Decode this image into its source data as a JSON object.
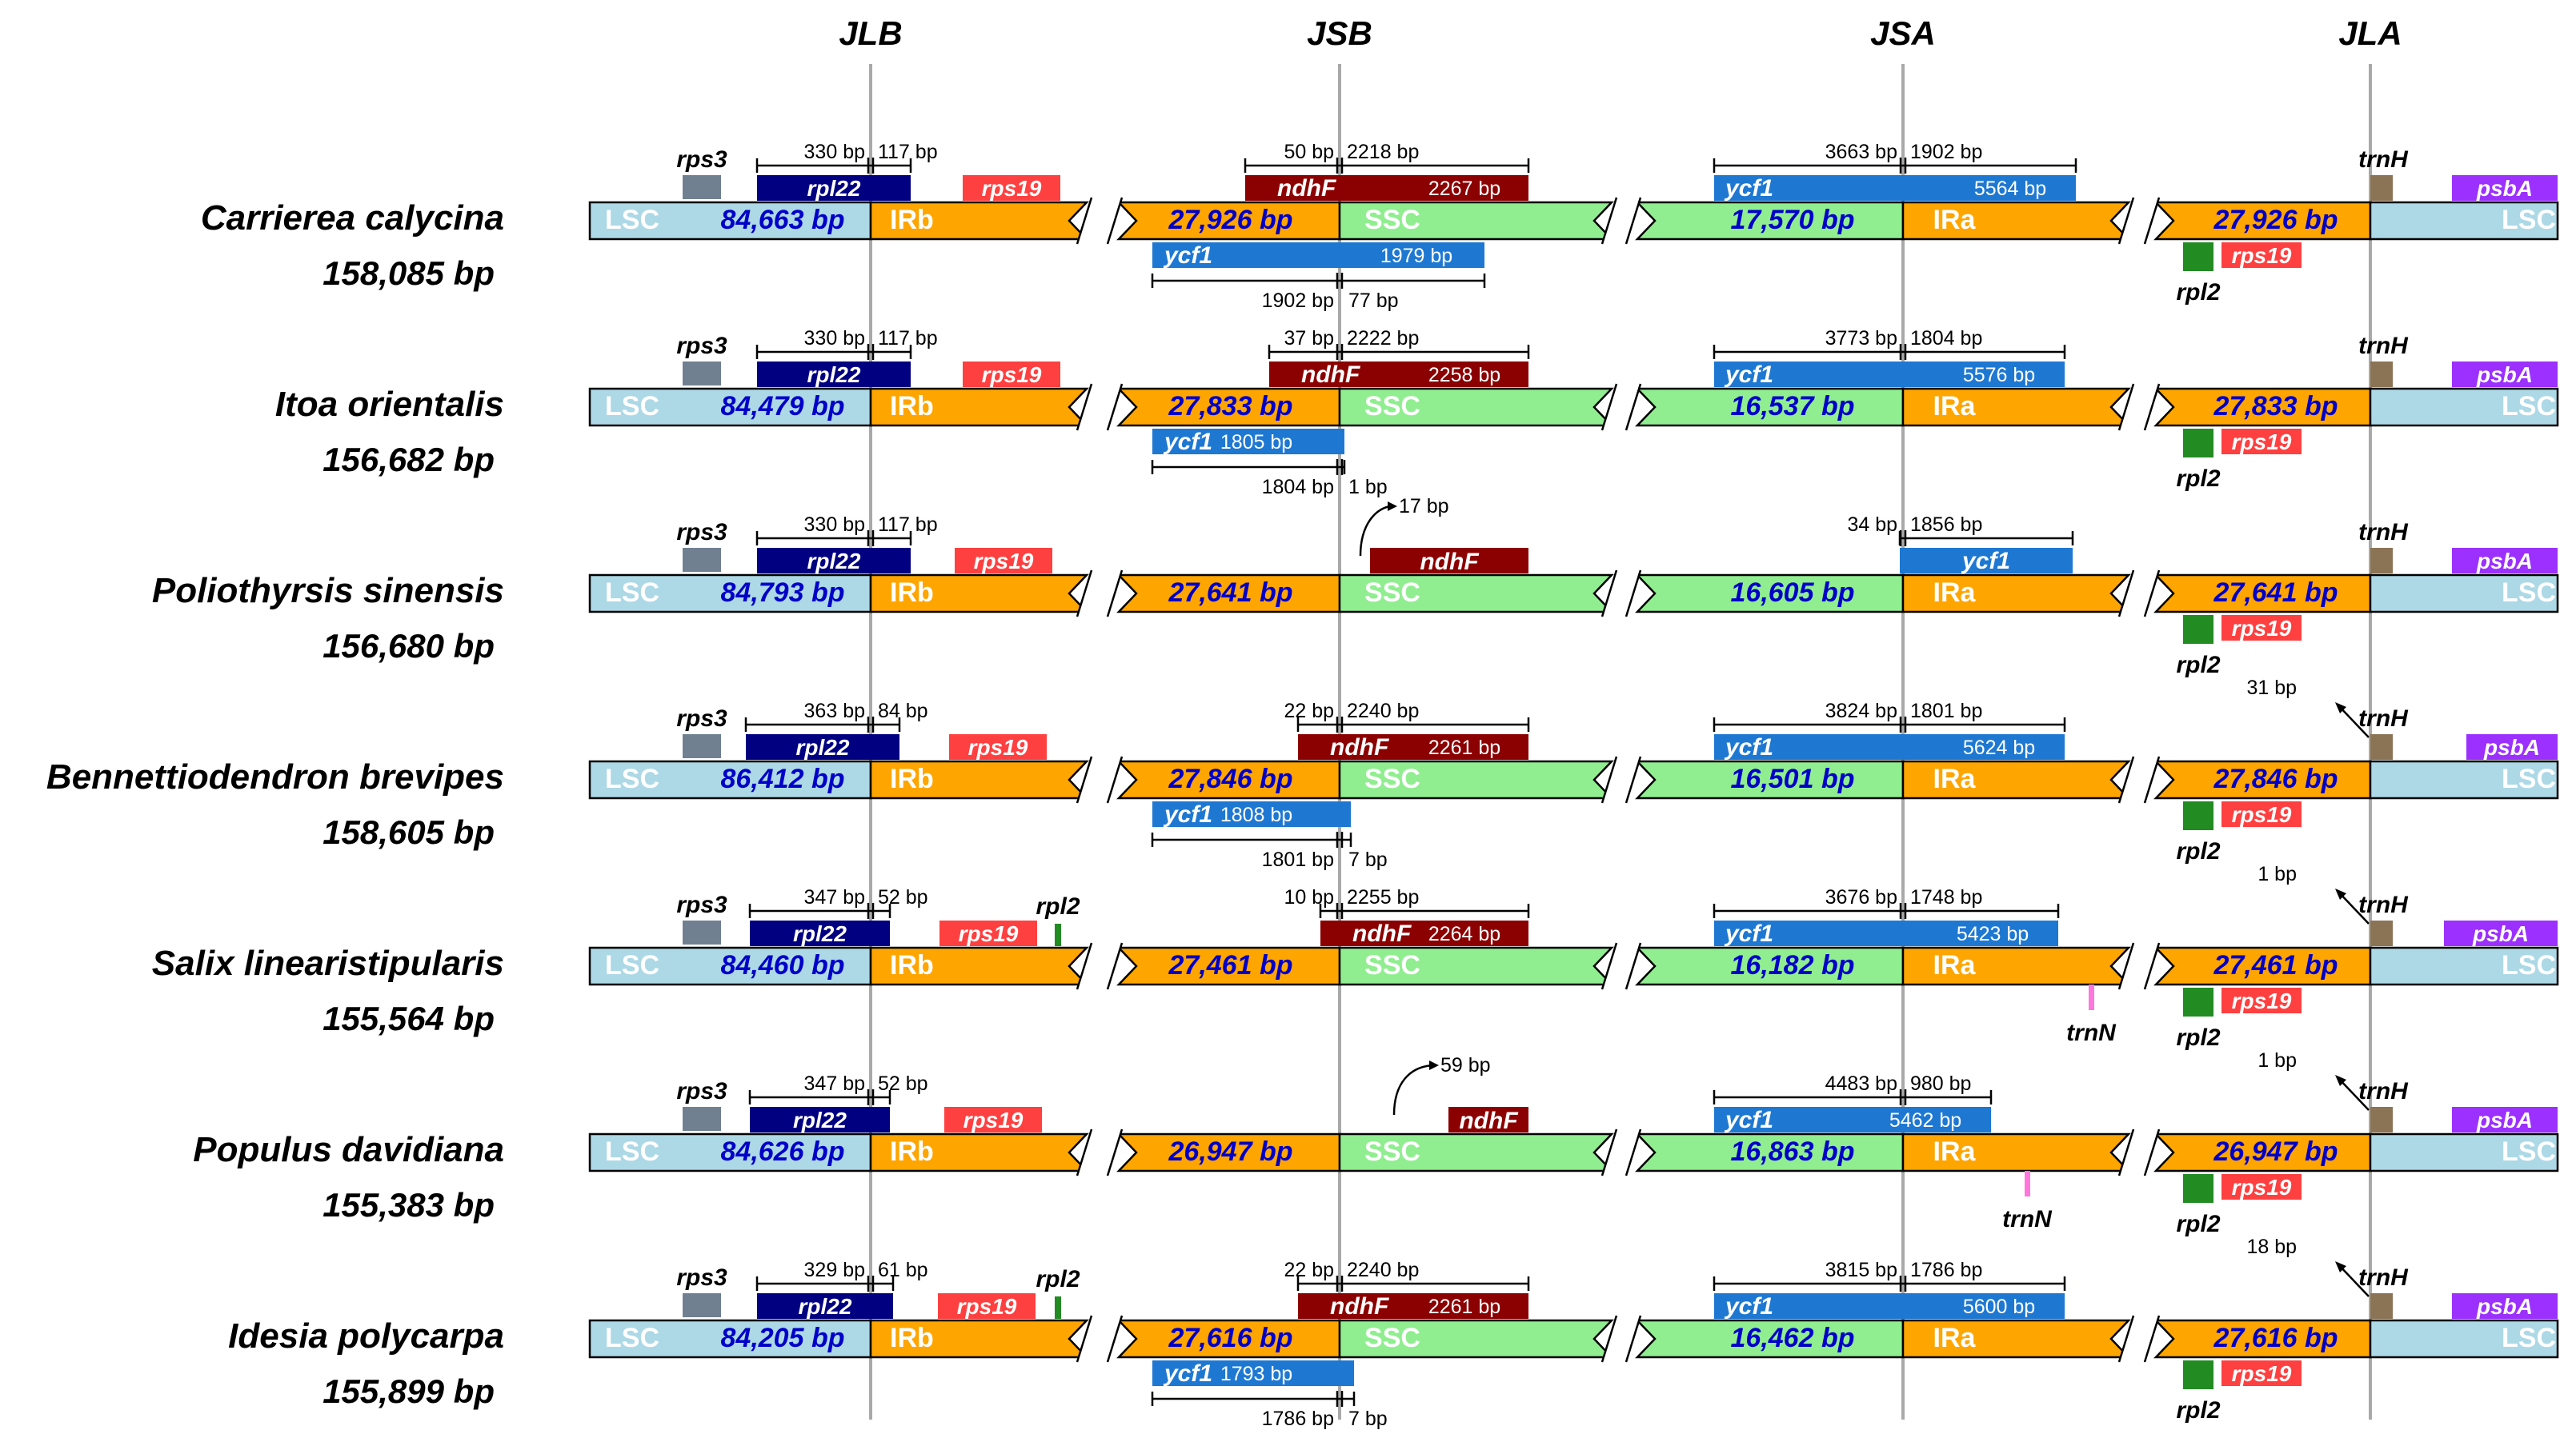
{
  "junctions": [
    "JLB",
    "JSB",
    "JSA",
    "JLA"
  ],
  "region_names": {
    "lsc": "LSC",
    "irb": "IRb",
    "ssc": "SSC",
    "ira": "IRa"
  },
  "colors": {
    "lsc": "#add8e6",
    "ir": "#ffa500",
    "ssc": "#90ee90",
    "border": "#000000",
    "rps3": "#708090",
    "rpl22": "#000080",
    "rps19": "#ff4040",
    "ndhF": "#8b0000",
    "ycf1": "#1e78d2",
    "trnH": "#8b7355",
    "psbA": "#9b30ff",
    "rpl2": "#228b22",
    "trnN": "#ff77dd",
    "region_text": "#0000c8",
    "junction_line": "#a9a9a9"
  },
  "rows": [
    {
      "species": "Carrierea calycina",
      "total": "158,085 bp",
      "lsc": "84,663 bp",
      "ir": "27,926 bp",
      "ssc": "17,570 bp",
      "ir2": "27,926 bp",
      "rps3": "rps3",
      "rpl22": "rpl22",
      "rps19_top": "rps19",
      "rps19_bottom": "rps19",
      "rpl2_top": null,
      "rpl2_bottom": "rpl2",
      "trnH": "trnH",
      "psbA": "psbA",
      "trnN": null,
      "jlb_left": "330 bp",
      "jlb_right": "117 bp",
      "ndhF": "ndhF",
      "ndhF_len": "2267 bp",
      "jsb_left": "50 bp",
      "jsb_right": "2218 bp",
      "ndhF_arrow": false,
      "ycf1_small": "ycf1",
      "ycf1_small_len": "1979 bp",
      "jsb_b_left": "1902 bp",
      "jsb_b_right": "77 bp",
      "ycf1": "ycf1",
      "ycf1_len": "5564 bp",
      "jsa_left": "3663 bp",
      "jsa_right": "1902 bp",
      "jla_bp": null
    },
    {
      "species": "Itoa orientalis",
      "total": "156,682 bp",
      "lsc": "84,479 bp",
      "ir": "27,833 bp",
      "ssc": "16,537 bp",
      "ir2": "27,833 bp",
      "rps3": "rps3",
      "rpl22": "rpl22",
      "rps19_top": "rps19",
      "rps19_bottom": "rps19",
      "rpl2_top": null,
      "rpl2_bottom": "rpl2",
      "trnH": "trnH",
      "psbA": "psbA",
      "trnN": null,
      "jlb_left": "330 bp",
      "jlb_right": "117 bp",
      "ndhF": "ndhF",
      "ndhF_len": "2258 bp",
      "jsb_left": "37 bp",
      "jsb_right": "2222 bp",
      "ndhF_arrow": false,
      "ycf1_small": "ycf1",
      "ycf1_small_len": "1805 bp",
      "jsb_b_left": "1804 bp",
      "jsb_b_right": "1 bp",
      "ycf1": "ycf1",
      "ycf1_len": "5576 bp",
      "jsa_left": "3773 bp",
      "jsa_right": "1804 bp",
      "jla_bp": null
    },
    {
      "species": "Poliothyrsis sinensis",
      "total": "156,680 bp",
      "lsc": "84,793 bp",
      "ir": "27,641 bp",
      "ssc": "16,605 bp",
      "ir2": "27,641 bp",
      "rps3": "rps3",
      "rpl22": "rpl22",
      "rps19_top": "rps19",
      "rps19_bottom": "rps19",
      "rpl2_top": null,
      "rpl2_bottom": "rpl2",
      "trnH": "trnH",
      "psbA": "psbA",
      "trnN": null,
      "jlb_left": "330 bp",
      "jlb_right": "117 bp",
      "ndhF": "ndhF",
      "ndhF_len": null,
      "jsb_left": null,
      "jsb_right": null,
      "ndhF_arrow": true,
      "ndhF_gap": "17 bp",
      "ycf1_small": null,
      "ycf1_small_len": null,
      "jsb_b_left": null,
      "jsb_b_right": null,
      "ycf1": "ycf1",
      "ycf1_len": null,
      "jsa_left": "34 bp",
      "jsa_right": "1856 bp",
      "jla_bp": null
    },
    {
      "species": "Bennettiodendron brevipes",
      "total": "158,605 bp",
      "lsc": "86,412 bp",
      "ir": "27,846 bp",
      "ssc": "16,501 bp",
      "ir2": "27,846 bp",
      "rps3": "rps3",
      "rpl22": "rpl22",
      "rps19_top": "rps19",
      "rps19_bottom": "rps19",
      "rpl2_top": null,
      "rpl2_bottom": "rpl2",
      "trnH": "trnH",
      "psbA": "psbA",
      "trnN": null,
      "jlb_left": "363 bp",
      "jlb_right": "84 bp",
      "ndhF": "ndhF",
      "ndhF_len": "2261 bp",
      "jsb_left": "22 bp",
      "jsb_right": "2240 bp",
      "ndhF_arrow": false,
      "ycf1_small": "ycf1",
      "ycf1_small_len": "1808 bp",
      "jsb_b_left": "1801 bp",
      "jsb_b_right": "7 bp",
      "ycf1": "ycf1",
      "ycf1_len": "5624 bp",
      "jsa_left": "3824 bp",
      "jsa_right": "1801 bp",
      "jla_bp": "31 bp"
    },
    {
      "species": "Salix linearistipularis",
      "total": "155,564 bp",
      "lsc": "84,460 bp",
      "ir": "27,461 bp",
      "ssc": "16,182 bp",
      "ir2": "27,461 bp",
      "rps3": "rps3",
      "rpl22": "rpl22",
      "rps19_top": "rps19",
      "rps19_bottom": "rps19",
      "rpl2_top": "rpl2",
      "rpl2_bottom": "rpl2",
      "trnH": "trnH",
      "psbA": "psbA",
      "trnN": "trnN",
      "jlb_left": "347 bp",
      "jlb_right": "52 bp",
      "ndhF": "ndhF",
      "ndhF_len": "2264 bp",
      "jsb_left": "10 bp",
      "jsb_right": "2255 bp",
      "ndhF_arrow": false,
      "ycf1_small": null,
      "ycf1_small_len": null,
      "jsb_b_left": null,
      "jsb_b_right": null,
      "ycf1": "ycf1",
      "ycf1_len": "5423 bp",
      "jsa_left": "3676 bp",
      "jsa_right": "1748 bp",
      "jla_bp": "1 bp"
    },
    {
      "species": "Populus davidiana",
      "total": "155,383 bp",
      "lsc": "84,626 bp",
      "ir": "26,947 bp",
      "ssc": "16,863 bp",
      "ir2": "26,947 bp",
      "rps3": "rps3",
      "rpl22": "rpl22",
      "rps19_top": "rps19",
      "rps19_bottom": "rps19",
      "rpl2_top": null,
      "rpl2_bottom": "rpl2",
      "trnH": "trnH",
      "psbA": "psbA",
      "trnN": "trnN",
      "jlb_left": "347 bp",
      "jlb_right": "52 bp",
      "ndhF": "ndhF",
      "ndhF_len": null,
      "jsb_left": null,
      "jsb_right": null,
      "ndhF_arrow": true,
      "ndhF_gap": "59 bp",
      "ycf1_small": null,
      "ycf1_small_len": null,
      "jsb_b_left": null,
      "jsb_b_right": null,
      "ycf1": "ycf1",
      "ycf1_len": "5462 bp",
      "jsa_left": "4483 bp",
      "jsa_right": "980 bp",
      "jla_bp": "1 bp"
    },
    {
      "species": "Idesia polycarpa",
      "total": "155,899 bp",
      "lsc": "84,205 bp",
      "ir": "27,616 bp",
      "ssc": "16,462 bp",
      "ir2": "27,616 bp",
      "rps3": "rps3",
      "rpl22": "rpl22",
      "rps19_top": "rps19",
      "rps19_bottom": "rps19",
      "rpl2_top": "rpl2",
      "rpl2_bottom": "rpl2",
      "trnH": "trnH",
      "psbA": "psbA",
      "trnN": null,
      "jlb_left": "329 bp",
      "jlb_right": "61 bp",
      "ndhF": "ndhF",
      "ndhF_len": "2261 bp",
      "jsb_left": "22 bp",
      "jsb_right": "2240 bp",
      "ndhF_arrow": false,
      "ycf1_small": "ycf1",
      "ycf1_small_len": "1793 bp",
      "jsb_b_left": "1786 bp",
      "jsb_b_right": "7 bp",
      "ycf1": "ycf1",
      "ycf1_len": "5600 bp",
      "jsa_left": "3815 bp",
      "jsa_right": "1786 bp",
      "jla_bp": "18 bp"
    }
  ]
}
